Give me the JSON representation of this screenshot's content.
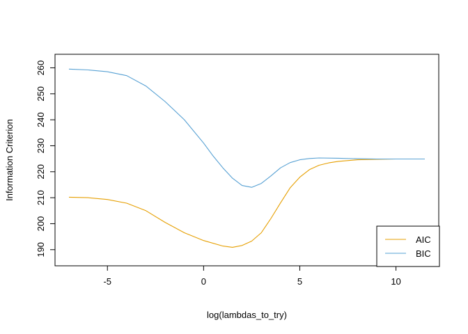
{
  "chart_data": {
    "type": "line",
    "title": "",
    "xlabel": "log(lambdas_to_try)",
    "ylabel": "Information Criterion",
    "xlim": [
      -7.0,
      11.5
    ],
    "ylim": [
      187,
      262
    ],
    "x_ticks": [
      -5,
      0,
      5,
      10
    ],
    "y_ticks": [
      190,
      200,
      210,
      220,
      230,
      240,
      250,
      260
    ],
    "x_tick_labels": [
      "-5",
      "0",
      "5",
      "10"
    ],
    "y_tick_labels": [
      "190",
      "200",
      "210",
      "220",
      "230",
      "240",
      "250",
      "260"
    ],
    "grid": false,
    "legend": {
      "position": "bottom-right",
      "entries": [
        "AIC",
        "BIC"
      ]
    },
    "series": [
      {
        "name": "AIC",
        "color": "#E69F00",
        "x": [
          -7.0,
          -6.0,
          -5.0,
          -4.0,
          -3.0,
          -2.0,
          -1.0,
          0.0,
          1.0,
          1.5,
          2.0,
          2.5,
          3.0,
          3.5,
          4.0,
          4.5,
          5.0,
          5.5,
          6.0,
          6.5,
          7.0,
          8.0,
          9.0,
          10.0,
          11.5
        ],
        "y": [
          210.2,
          210.0,
          209.3,
          207.9,
          205.0,
          200.5,
          196.5,
          193.5,
          191.4,
          190.9,
          191.6,
          193.3,
          196.5,
          202.0,
          208.0,
          213.8,
          217.9,
          220.8,
          222.5,
          223.4,
          224.0,
          224.6,
          224.8,
          224.9,
          224.9
        ]
      },
      {
        "name": "BIC",
        "color": "#56A0D3",
        "x": [
          -7.0,
          -6.0,
          -5.0,
          -4.0,
          -3.0,
          -2.0,
          -1.0,
          0.0,
          0.5,
          1.0,
          1.5,
          2.0,
          2.5,
          3.0,
          3.5,
          4.0,
          4.5,
          5.0,
          5.5,
          6.0,
          7.0,
          8.0,
          9.0,
          10.0,
          11.5
        ],
        "y": [
          259.5,
          259.2,
          258.5,
          257.0,
          253.0,
          247.0,
          240.0,
          231.0,
          226.0,
          221.5,
          217.5,
          214.7,
          214.0,
          215.5,
          218.4,
          221.5,
          223.5,
          224.6,
          225.1,
          225.3,
          225.2,
          225.0,
          224.9,
          224.9,
          224.9
        ]
      }
    ]
  }
}
